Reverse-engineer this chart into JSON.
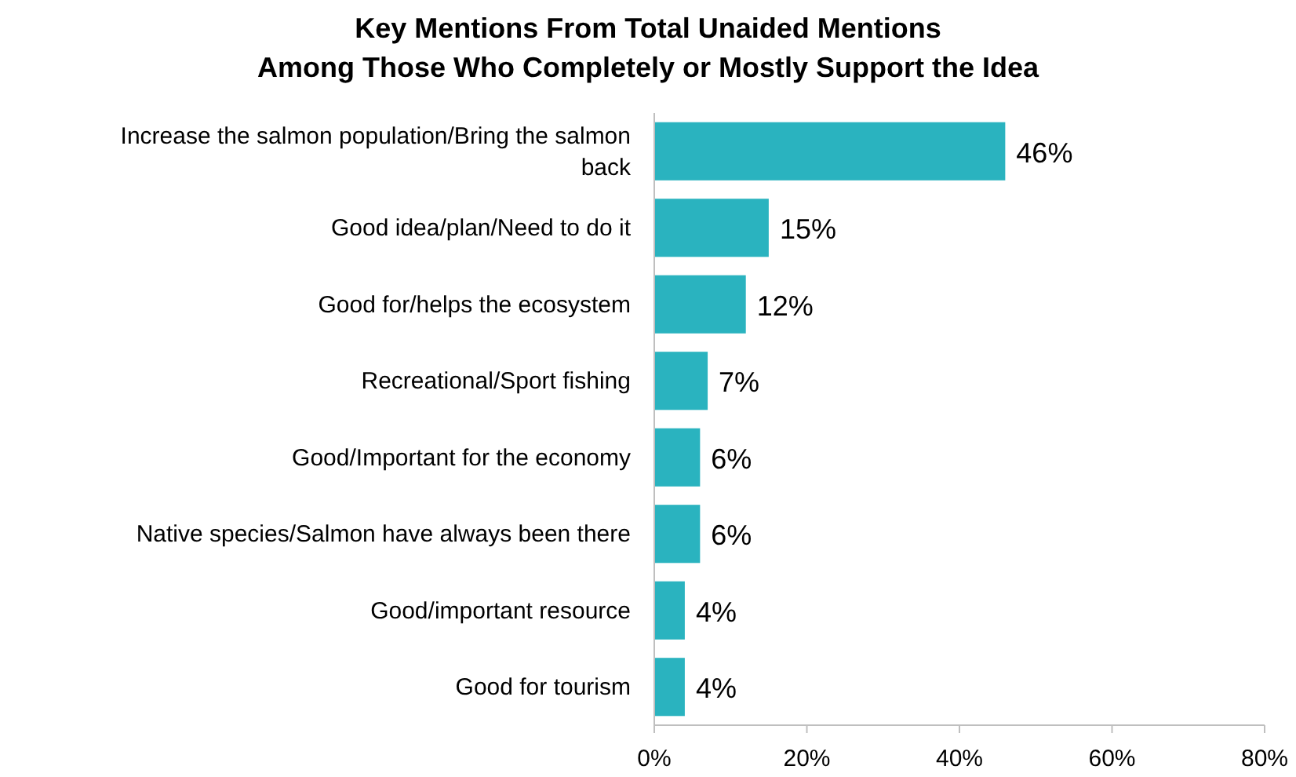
{
  "chart_data": {
    "type": "bar",
    "orientation": "horizontal",
    "title": "Key Mentions From Total Unaided Mentions\nAmong Those Who Completely or Mostly Support the Idea",
    "categories": [
      "Increase the salmon population/Bring the salmon back",
      "Good idea/plan/Need to do it",
      "Good for/helps the ecosystem",
      "Recreational/Sport fishing",
      "Good/Important for the economy",
      "Native species/Salmon have always been there",
      "Good/important resource",
      "Good for tourism"
    ],
    "values": [
      46,
      15,
      12,
      7,
      6,
      6,
      4,
      4
    ],
    "value_labels": [
      "46%",
      "15%",
      "12%",
      "7%",
      "6%",
      "6%",
      "4%",
      "4%"
    ],
    "color": "#2ab3bf",
    "xlim": [
      0,
      80
    ],
    "xticks": [
      {
        "value": 0,
        "label": "0%"
      },
      {
        "value": 20,
        "label": "20%"
      },
      {
        "value": 40,
        "label": "40%"
      },
      {
        "value": 60,
        "label": "60%"
      },
      {
        "value": 80,
        "label": "80%"
      }
    ],
    "grid": false
  }
}
